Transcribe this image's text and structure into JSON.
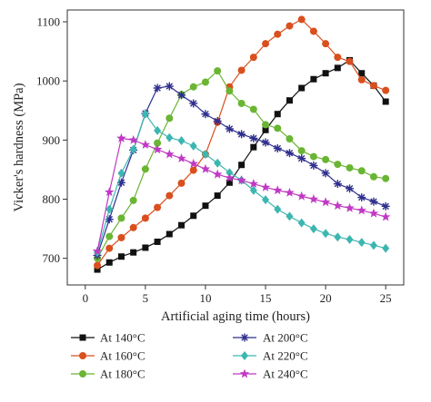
{
  "chart_data": {
    "type": "line",
    "title": "",
    "xlabel": "Artificial aging time (hours)",
    "ylabel": "Vicker's hardness (MPa)",
    "xlim": [
      -1.5,
      26.5
    ],
    "ylim": [
      655,
      1120
    ],
    "xticks": [
      0,
      5,
      10,
      15,
      20,
      25
    ],
    "yticks": [
      700,
      800,
      900,
      1000,
      1100
    ],
    "grid": false,
    "legend_position": "bottom",
    "series": [
      {
        "name": "At 140°C",
        "color": "#111111",
        "marker": "square",
        "x": [
          1,
          2,
          3,
          4,
          5,
          6,
          7,
          8,
          9,
          10,
          11,
          12,
          13,
          14,
          15,
          16,
          17,
          18,
          19,
          20,
          21,
          22,
          23,
          24,
          25
        ],
        "y": [
          681,
          693,
          703,
          710,
          718,
          728,
          741,
          756,
          772,
          789,
          806,
          828,
          858,
          888,
          917,
          944,
          967,
          988,
          1003,
          1013,
          1022,
          1035,
          1013,
          992,
          965
        ]
      },
      {
        "name": "At 160°C",
        "color": "#d94f1e",
        "marker": "circle",
        "x": [
          1,
          2,
          3,
          4,
          5,
          6,
          7,
          8,
          9,
          10,
          11,
          12,
          13,
          14,
          15,
          16,
          17,
          18,
          19,
          20,
          21,
          22,
          23,
          24,
          25
        ],
        "y": [
          688,
          717,
          735,
          752,
          768,
          786,
          806,
          827,
          849,
          876,
          930,
          990,
          1018,
          1040,
          1063,
          1079,
          1093,
          1104,
          1084,
          1063,
          1040,
          1033,
          1002,
          992,
          984
        ]
      },
      {
        "name": "At 180°C",
        "color": "#6ab533",
        "marker": "circle",
        "x": [
          1,
          2,
          3,
          4,
          5,
          6,
          7,
          8,
          9,
          10,
          11,
          12,
          13,
          14,
          15,
          16,
          17,
          18,
          19,
          20,
          21,
          22,
          23,
          24,
          25
        ],
        "y": [
          700,
          737,
          768,
          798,
          851,
          895,
          937,
          977,
          990,
          998,
          1017,
          983,
          962,
          952,
          926,
          920,
          902,
          882,
          872,
          867,
          859,
          853,
          848,
          838,
          835
        ]
      },
      {
        "name": "At 200°C",
        "color": "#2f2f8f",
        "marker": "asterisk",
        "x": [
          1,
          2,
          3,
          4,
          5,
          6,
          7,
          8,
          9,
          10,
          11,
          12,
          13,
          14,
          15,
          16,
          17,
          18,
          19,
          20,
          21,
          22,
          23,
          24,
          25
        ],
        "y": [
          705,
          766,
          828,
          883,
          945,
          988,
          991,
          976,
          962,
          944,
          932,
          919,
          910,
          903,
          896,
          886,
          878,
          869,
          857,
          844,
          826,
          818,
          803,
          796,
          788
        ]
      },
      {
        "name": "At 220°C",
        "color": "#3cb6b0",
        "marker": "diamond",
        "x": [
          1,
          2,
          3,
          4,
          5,
          6,
          7,
          8,
          9,
          10,
          11,
          12,
          13,
          14,
          15,
          16,
          17,
          18,
          19,
          20,
          21,
          22,
          23,
          24,
          25
        ],
        "y": [
          710,
          783,
          844,
          884,
          944,
          916,
          904,
          899,
          890,
          876,
          861,
          845,
          832,
          815,
          799,
          783,
          771,
          760,
          750,
          742,
          736,
          732,
          727,
          722,
          717
        ]
      },
      {
        "name": "At 240°C",
        "color": "#c039c4",
        "marker": "star",
        "x": [
          1,
          2,
          3,
          4,
          5,
          6,
          7,
          8,
          9,
          10,
          11,
          12,
          13,
          14,
          15,
          16,
          17,
          18,
          19,
          20,
          21,
          22,
          23,
          24,
          25
        ],
        "y": [
          712,
          812,
          903,
          900,
          892,
          884,
          876,
          869,
          860,
          851,
          842,
          836,
          832,
          826,
          820,
          815,
          811,
          805,
          800,
          795,
          789,
          785,
          781,
          776,
          770
        ]
      }
    ]
  }
}
